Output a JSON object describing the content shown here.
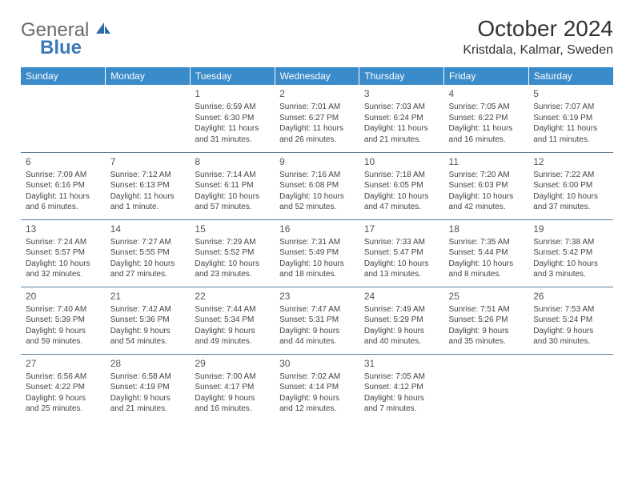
{
  "logo": {
    "text_general": "General",
    "text_blue": "Blue",
    "sail_color": "#2f6aa8"
  },
  "header": {
    "title": "October 2024",
    "location": "Kristdala, Kalmar, Sweden"
  },
  "colors": {
    "header_bg": "#3a8bc9",
    "header_fg": "#ffffff",
    "rule": "#5a7a99",
    "text": "#444444",
    "daynum": "#555555"
  },
  "day_names": [
    "Sunday",
    "Monday",
    "Tuesday",
    "Wednesday",
    "Thursday",
    "Friday",
    "Saturday"
  ],
  "weeks": [
    [
      null,
      null,
      {
        "n": "1",
        "sr": "Sunrise: 6:59 AM",
        "ss": "Sunset: 6:30 PM",
        "d1": "Daylight: 11 hours",
        "d2": "and 31 minutes."
      },
      {
        "n": "2",
        "sr": "Sunrise: 7:01 AM",
        "ss": "Sunset: 6:27 PM",
        "d1": "Daylight: 11 hours",
        "d2": "and 26 minutes."
      },
      {
        "n": "3",
        "sr": "Sunrise: 7:03 AM",
        "ss": "Sunset: 6:24 PM",
        "d1": "Daylight: 11 hours",
        "d2": "and 21 minutes."
      },
      {
        "n": "4",
        "sr": "Sunrise: 7:05 AM",
        "ss": "Sunset: 6:22 PM",
        "d1": "Daylight: 11 hours",
        "d2": "and 16 minutes."
      },
      {
        "n": "5",
        "sr": "Sunrise: 7:07 AM",
        "ss": "Sunset: 6:19 PM",
        "d1": "Daylight: 11 hours",
        "d2": "and 11 minutes."
      }
    ],
    [
      {
        "n": "6",
        "sr": "Sunrise: 7:09 AM",
        "ss": "Sunset: 6:16 PM",
        "d1": "Daylight: 11 hours",
        "d2": "and 6 minutes."
      },
      {
        "n": "7",
        "sr": "Sunrise: 7:12 AM",
        "ss": "Sunset: 6:13 PM",
        "d1": "Daylight: 11 hours",
        "d2": "and 1 minute."
      },
      {
        "n": "8",
        "sr": "Sunrise: 7:14 AM",
        "ss": "Sunset: 6:11 PM",
        "d1": "Daylight: 10 hours",
        "d2": "and 57 minutes."
      },
      {
        "n": "9",
        "sr": "Sunrise: 7:16 AM",
        "ss": "Sunset: 6:08 PM",
        "d1": "Daylight: 10 hours",
        "d2": "and 52 minutes."
      },
      {
        "n": "10",
        "sr": "Sunrise: 7:18 AM",
        "ss": "Sunset: 6:05 PM",
        "d1": "Daylight: 10 hours",
        "d2": "and 47 minutes."
      },
      {
        "n": "11",
        "sr": "Sunrise: 7:20 AM",
        "ss": "Sunset: 6:03 PM",
        "d1": "Daylight: 10 hours",
        "d2": "and 42 minutes."
      },
      {
        "n": "12",
        "sr": "Sunrise: 7:22 AM",
        "ss": "Sunset: 6:00 PM",
        "d1": "Daylight: 10 hours",
        "d2": "and 37 minutes."
      }
    ],
    [
      {
        "n": "13",
        "sr": "Sunrise: 7:24 AM",
        "ss": "Sunset: 5:57 PM",
        "d1": "Daylight: 10 hours",
        "d2": "and 32 minutes."
      },
      {
        "n": "14",
        "sr": "Sunrise: 7:27 AM",
        "ss": "Sunset: 5:55 PM",
        "d1": "Daylight: 10 hours",
        "d2": "and 27 minutes."
      },
      {
        "n": "15",
        "sr": "Sunrise: 7:29 AM",
        "ss": "Sunset: 5:52 PM",
        "d1": "Daylight: 10 hours",
        "d2": "and 23 minutes."
      },
      {
        "n": "16",
        "sr": "Sunrise: 7:31 AM",
        "ss": "Sunset: 5:49 PM",
        "d1": "Daylight: 10 hours",
        "d2": "and 18 minutes."
      },
      {
        "n": "17",
        "sr": "Sunrise: 7:33 AM",
        "ss": "Sunset: 5:47 PM",
        "d1": "Daylight: 10 hours",
        "d2": "and 13 minutes."
      },
      {
        "n": "18",
        "sr": "Sunrise: 7:35 AM",
        "ss": "Sunset: 5:44 PM",
        "d1": "Daylight: 10 hours",
        "d2": "and 8 minutes."
      },
      {
        "n": "19",
        "sr": "Sunrise: 7:38 AM",
        "ss": "Sunset: 5:42 PM",
        "d1": "Daylight: 10 hours",
        "d2": "and 3 minutes."
      }
    ],
    [
      {
        "n": "20",
        "sr": "Sunrise: 7:40 AM",
        "ss": "Sunset: 5:39 PM",
        "d1": "Daylight: 9 hours",
        "d2": "and 59 minutes."
      },
      {
        "n": "21",
        "sr": "Sunrise: 7:42 AM",
        "ss": "Sunset: 5:36 PM",
        "d1": "Daylight: 9 hours",
        "d2": "and 54 minutes."
      },
      {
        "n": "22",
        "sr": "Sunrise: 7:44 AM",
        "ss": "Sunset: 5:34 PM",
        "d1": "Daylight: 9 hours",
        "d2": "and 49 minutes."
      },
      {
        "n": "23",
        "sr": "Sunrise: 7:47 AM",
        "ss": "Sunset: 5:31 PM",
        "d1": "Daylight: 9 hours",
        "d2": "and 44 minutes."
      },
      {
        "n": "24",
        "sr": "Sunrise: 7:49 AM",
        "ss": "Sunset: 5:29 PM",
        "d1": "Daylight: 9 hours",
        "d2": "and 40 minutes."
      },
      {
        "n": "25",
        "sr": "Sunrise: 7:51 AM",
        "ss": "Sunset: 5:26 PM",
        "d1": "Daylight: 9 hours",
        "d2": "and 35 minutes."
      },
      {
        "n": "26",
        "sr": "Sunrise: 7:53 AM",
        "ss": "Sunset: 5:24 PM",
        "d1": "Daylight: 9 hours",
        "d2": "and 30 minutes."
      }
    ],
    [
      {
        "n": "27",
        "sr": "Sunrise: 6:56 AM",
        "ss": "Sunset: 4:22 PM",
        "d1": "Daylight: 9 hours",
        "d2": "and 25 minutes."
      },
      {
        "n": "28",
        "sr": "Sunrise: 6:58 AM",
        "ss": "Sunset: 4:19 PM",
        "d1": "Daylight: 9 hours",
        "d2": "and 21 minutes."
      },
      {
        "n": "29",
        "sr": "Sunrise: 7:00 AM",
        "ss": "Sunset: 4:17 PM",
        "d1": "Daylight: 9 hours",
        "d2": "and 16 minutes."
      },
      {
        "n": "30",
        "sr": "Sunrise: 7:02 AM",
        "ss": "Sunset: 4:14 PM",
        "d1": "Daylight: 9 hours",
        "d2": "and 12 minutes."
      },
      {
        "n": "31",
        "sr": "Sunrise: 7:05 AM",
        "ss": "Sunset: 4:12 PM",
        "d1": "Daylight: 9 hours",
        "d2": "and 7 minutes."
      },
      null,
      null
    ]
  ]
}
